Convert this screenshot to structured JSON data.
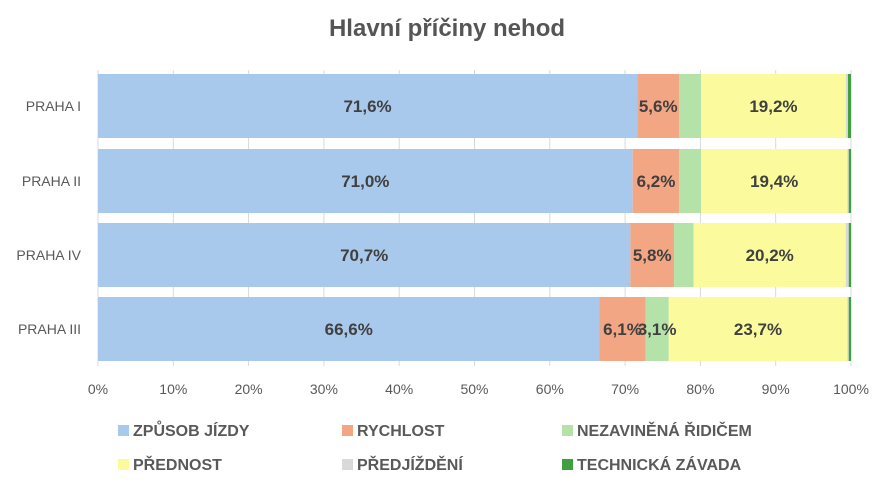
{
  "chart_data": {
    "type": "bar",
    "orientation": "horizontal",
    "stacked": "percent",
    "title": "Hlavní příčiny nehod",
    "categories": [
      "PRAHA I",
      "PRAHA II",
      "PRAHA IV",
      "PRAHA III"
    ],
    "series": [
      {
        "name": "ZPŮSOB JÍZDY",
        "color": "#A9C9EC",
        "values": [
          71.6,
          71.0,
          70.7,
          66.6
        ],
        "labels": [
          "71,6%",
          "71,0%",
          "70,7%",
          "66,6%"
        ]
      },
      {
        "name": "RYCHLOST",
        "color": "#F2A684",
        "values": [
          5.6,
          6.2,
          5.8,
          6.1
        ],
        "labels": [
          "5,6%",
          "6,2%",
          "5,8%",
          "6,1%"
        ]
      },
      {
        "name": "NEZAVINĚNÁ ŘIDIČEM",
        "color": "#B5E2A8",
        "values": [
          2.9,
          2.9,
          2.6,
          3.1
        ],
        "labels": [
          "",
          "",
          "",
          "3,1%"
        ]
      },
      {
        "name": "PŘEDNOST",
        "color": "#FBFB9E",
        "values": [
          19.2,
          19.4,
          20.2,
          23.7
        ],
        "labels": [
          "19,2%",
          "19,4%",
          "20,2%",
          "23,7%"
        ]
      },
      {
        "name": "PŘEDJÍŽDĚNÍ",
        "color": "#D9D9D9",
        "values": [
          0.3,
          0.2,
          0.4,
          0.2
        ],
        "labels": [
          "",
          "",
          "",
          ""
        ]
      },
      {
        "name": "TECHNICKÁ ZÁVADA",
        "color": "#3FA03F",
        "values": [
          0.4,
          0.3,
          0.3,
          0.3
        ],
        "labels": [
          "",
          "",
          "",
          ""
        ]
      }
    ],
    "xlim": [
      0,
      100
    ],
    "xticks": [
      "0%",
      "10%",
      "20%",
      "30%",
      "40%",
      "50%",
      "60%",
      "70%",
      "80%",
      "90%",
      "100%"
    ],
    "legend_position": "bottom",
    "grid": true
  }
}
